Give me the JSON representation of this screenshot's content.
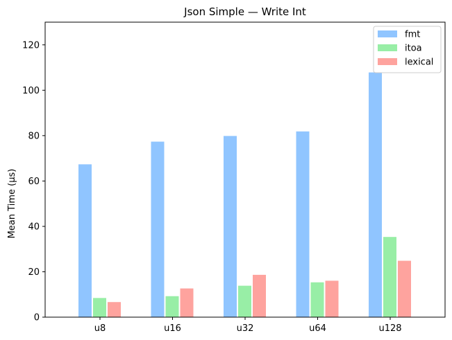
{
  "chart_data": {
    "type": "bar",
    "title": "Json Simple — Write Int",
    "xlabel": "",
    "ylabel": "Mean Time (µs)",
    "categories": [
      "u8",
      "u16",
      "u32",
      "u64",
      "u128"
    ],
    "series": [
      {
        "name": "fmt",
        "color": "#90c5ff",
        "values": [
          67.5,
          77.5,
          80.0,
          82.0,
          108.0
        ]
      },
      {
        "name": "itoa",
        "color": "#98eea6",
        "values": [
          8.6,
          9.4,
          14.0,
          15.5,
          35.5
        ]
      },
      {
        "name": "lexical",
        "color": "#fea39e",
        "values": [
          6.8,
          12.8,
          18.8,
          16.2,
          25.0
        ]
      }
    ],
    "ylim": [
      0,
      130
    ],
    "yticks": [
      0,
      20,
      40,
      60,
      80,
      100,
      120
    ],
    "grid": false,
    "legend_position": "top-right"
  }
}
